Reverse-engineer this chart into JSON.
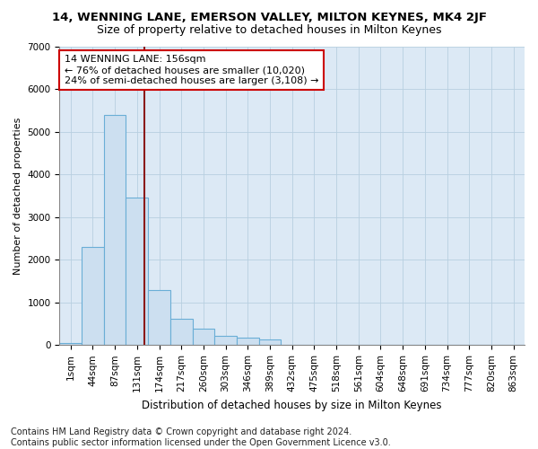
{
  "title": "14, WENNING LANE, EMERSON VALLEY, MILTON KEYNES, MK4 2JF",
  "subtitle": "Size of property relative to detached houses in Milton Keynes",
  "xlabel": "Distribution of detached houses by size in Milton Keynes",
  "ylabel": "Number of detached properties",
  "bar_color": "#ccdff0",
  "bar_edge_color": "#6aaed6",
  "background_color": "#dce9f5",
  "grid_color": "#b8cfe0",
  "fig_background": "#ffffff",
  "categories": [
    "1sqm",
    "44sqm",
    "87sqm",
    "131sqm",
    "174sqm",
    "217sqm",
    "260sqm",
    "303sqm",
    "346sqm",
    "389sqm",
    "432sqm",
    "475sqm",
    "518sqm",
    "561sqm",
    "604sqm",
    "648sqm",
    "691sqm",
    "734sqm",
    "777sqm",
    "820sqm",
    "863sqm"
  ],
  "values": [
    50,
    2300,
    5400,
    3450,
    1300,
    620,
    390,
    220,
    170,
    130,
    0,
    0,
    0,
    0,
    0,
    0,
    0,
    0,
    0,
    0,
    0
  ],
  "ylim": [
    0,
    7000
  ],
  "yticks": [
    0,
    1000,
    2000,
    3000,
    4000,
    5000,
    6000,
    7000
  ],
  "vline_x": 3.35,
  "vline_color": "#8b1a1a",
  "annotation_text": "14 WENNING LANE: 156sqm\n← 76% of detached houses are smaller (10,020)\n24% of semi-detached houses are larger (3,108) →",
  "annotation_box_facecolor": "#ffffff",
  "annotation_box_edgecolor": "#cc0000",
  "footnote": "Contains HM Land Registry data © Crown copyright and database right 2024.\nContains public sector information licensed under the Open Government Licence v3.0.",
  "title_fontsize": 9.5,
  "subtitle_fontsize": 9,
  "ylabel_fontsize": 8,
  "xlabel_fontsize": 8.5,
  "annotation_fontsize": 8,
  "footnote_fontsize": 7,
  "tick_fontsize": 7.5
}
